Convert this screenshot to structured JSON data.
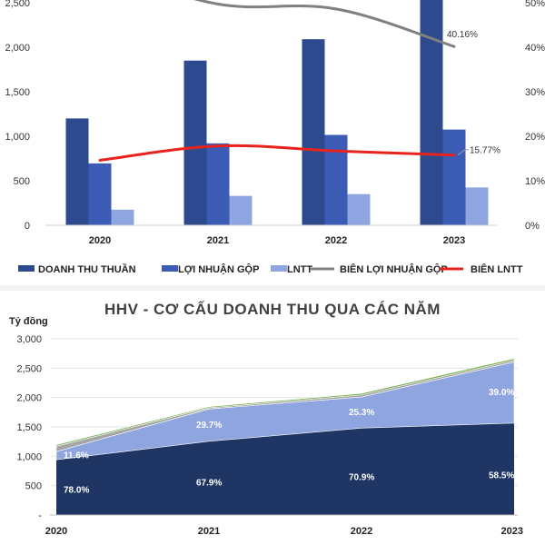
{
  "chart_data": [
    {
      "type": "bar",
      "categories": [
        "2020",
        "2021",
        "2022",
        "2023"
      ],
      "series": [
        {
          "name": "DOANH THU THUẦN",
          "kind": "bar",
          "axis": "left",
          "color": "#2e4a8f",
          "values": [
            1200,
            1850,
            2090,
            2700
          ]
        },
        {
          "name": "LỢI NHUẬN GỘP",
          "kind": "bar",
          "axis": "left",
          "color": "#3b5bb5",
          "values": [
            695,
            920,
            1015,
            1075
          ]
        },
        {
          "name": "LNTT",
          "kind": "bar",
          "axis": "left",
          "color": "#8ea5df",
          "values": [
            175,
            330,
            350,
            425
          ]
        },
        {
          "name": "BIÊN LỢI NHUẬN GỘP",
          "kind": "line",
          "axis": "right",
          "color": "#808080",
          "values": [
            57.9,
            49.7,
            48.6,
            40.16
          ]
        },
        {
          "name": "BIÊN LNTT",
          "kind": "line",
          "axis": "right",
          "color": "#e8231e",
          "values": [
            14.6,
            17.8,
            16.7,
            15.77
          ]
        }
      ],
      "y_left_ticks": [
        "0",
        "500",
        "1,000",
        "1,500",
        "2,000",
        "2,500"
      ],
      "y_right_ticks": [
        "0%",
        "10%",
        "20%",
        "30%",
        "40%",
        "50%"
      ],
      "ylim_left": [
        0,
        2500
      ],
      "ylim_right": [
        0,
        50
      ],
      "annotations": [
        {
          "series": "BIÊN LỢI NHUẬN GỘP",
          "category": "2023",
          "text": "40.16%"
        },
        {
          "series": "BIÊN LNTT",
          "category": "2023",
          "text": "15.77%"
        }
      ],
      "legend_position": "bottom",
      "grid": false
    },
    {
      "type": "area",
      "title": "HHV - CƠ CẤU DOANH THU QUA CÁC NĂM",
      "ylabel": "Tỷ đồng",
      "x": [
        "2020",
        "2021",
        "2022",
        "2023"
      ],
      "stacked": true,
      "series": [
        {
          "color": "#1f3563",
          "values": [
            940,
            1255,
            1480,
            1565
          ],
          "labels": [
            "78.0%",
            "67.9%",
            "70.9%",
            "58.5%"
          ]
        },
        {
          "color": "#8ea5df",
          "values": [
            140,
            550,
            530,
            1040
          ],
          "labels": [
            "11.6%",
            "29.7%",
            "25.3%",
            "39.0%"
          ]
        },
        {
          "color": "#a5a5a5",
          "values": [
            90,
            20,
            35,
            30
          ],
          "labels": []
        },
        {
          "color": "#70ad47",
          "values": [
            25,
            20,
            25,
            30
          ],
          "labels": []
        }
      ],
      "y_ticks": [
        "-",
        "500",
        "1,000",
        "1,500",
        "2,000",
        "2,500",
        "3,000"
      ],
      "ylim": [
        0,
        3000
      ],
      "grid": true,
      "legend_position": "none"
    }
  ]
}
